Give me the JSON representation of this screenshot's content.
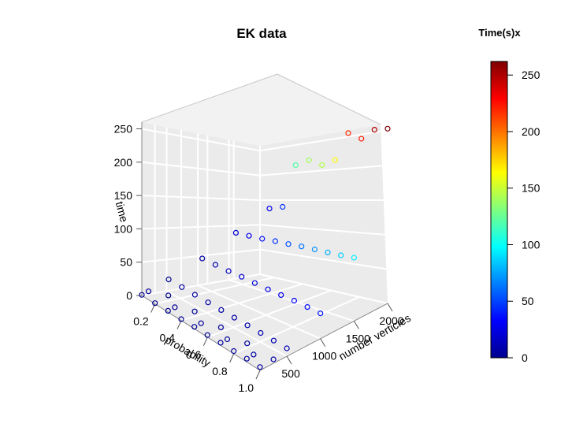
{
  "chart_data": {
    "type": "scatter3d",
    "title": "EK  data",
    "xlabel": "probability",
    "ylabel": "number verticies",
    "zlabel": "time",
    "x_ticks": [
      "0.2",
      "0.4",
      "0.6",
      "0.8",
      "1.0"
    ],
    "y_ticks": [
      "500",
      "1000",
      "1500",
      "2000"
    ],
    "z_ticks": [
      "0",
      "50",
      "100",
      "150",
      "200",
      "250"
    ],
    "xlim": [
      0.1,
      1.0
    ],
    "ylim": [
      100,
      2000
    ],
    "zlim": [
      0,
      260
    ],
    "grid": true,
    "marker": "open-circle",
    "colorbar": {
      "title": "Time(s)x",
      "ticks": [
        "0",
        "50",
        "100",
        "150",
        "200",
        "250"
      ],
      "range": [
        0,
        262
      ],
      "colors": [
        "#00008F",
        "#0000FF",
        "#007FFF",
        "#00FFFF",
        "#7FFF7F",
        "#FFFF00",
        "#FF7F00",
        "#FF0000",
        "#7F0000"
      ]
    },
    "points": [
      [
        0.1,
        100,
        1
      ],
      [
        0.2,
        100,
        1
      ],
      [
        0.3,
        100,
        2
      ],
      [
        0.4,
        100,
        2
      ],
      [
        0.5,
        100,
        3
      ],
      [
        0.6,
        100,
        3
      ],
      [
        0.7,
        100,
        4
      ],
      [
        0.8,
        100,
        4
      ],
      [
        0.9,
        100,
        5
      ],
      [
        1.0,
        100,
        5
      ],
      [
        0.1,
        200,
        1
      ],
      [
        0.3,
        200,
        2
      ],
      [
        0.5,
        200,
        3
      ],
      [
        0.7,
        200,
        4
      ],
      [
        0.9,
        200,
        6
      ],
      [
        0.2,
        300,
        2
      ],
      [
        0.4,
        300,
        3
      ],
      [
        0.6,
        300,
        4
      ],
      [
        0.8,
        300,
        5
      ],
      [
        1.0,
        300,
        6
      ],
      [
        0.1,
        500,
        3
      ],
      [
        0.2,
        500,
        4
      ],
      [
        0.3,
        500,
        5
      ],
      [
        0.4,
        500,
        6
      ],
      [
        0.5,
        500,
        7
      ],
      [
        0.6,
        500,
        8
      ],
      [
        0.7,
        500,
        9
      ],
      [
        0.8,
        500,
        10
      ],
      [
        0.9,
        500,
        11
      ],
      [
        1.0,
        500,
        12
      ],
      [
        0.1,
        1000,
        8
      ],
      [
        0.2,
        1000,
        11
      ],
      [
        0.3,
        1000,
        14
      ],
      [
        0.4,
        1000,
        18
      ],
      [
        0.5,
        1000,
        21
      ],
      [
        0.6,
        1000,
        24
      ],
      [
        0.7,
        1000,
        28
      ],
      [
        0.8,
        1000,
        32
      ],
      [
        0.9,
        1000,
        35
      ],
      [
        1.0,
        1000,
        38
      ],
      [
        0.1,
        1500,
        20
      ],
      [
        0.2,
        1500,
        28
      ],
      [
        0.3,
        1500,
        36
      ],
      [
        0.4,
        1500,
        45
      ],
      [
        0.5,
        1500,
        53
      ],
      [
        0.6,
        1500,
        62
      ],
      [
        0.7,
        1500,
        70
      ],
      [
        0.8,
        1500,
        78
      ],
      [
        0.9,
        1500,
        86
      ],
      [
        1.0,
        1500,
        95
      ],
      [
        0.1,
        2000,
        30
      ],
      [
        0.2,
        2000,
        45
      ],
      [
        0.3,
        2000,
        120
      ],
      [
        0.4,
        2000,
        140
      ],
      [
        0.5,
        2000,
        145
      ],
      [
        0.6,
        2000,
        165
      ],
      [
        0.7,
        2000,
        218
      ],
      [
        0.8,
        2000,
        222
      ],
      [
        0.9,
        2000,
        248
      ],
      [
        1.0,
        2000,
        262
      ]
    ]
  }
}
